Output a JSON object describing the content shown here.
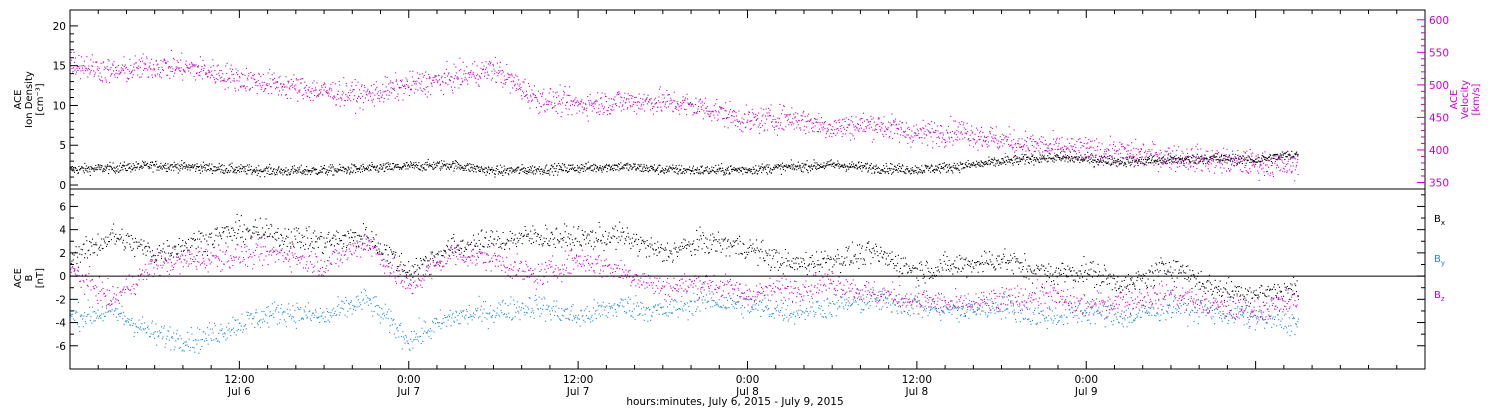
{
  "chart_data": [
    {
      "type": "scatter",
      "panel": "top",
      "ylabel_left": [
        "ACE",
        "Ion Density",
        "[cm⁻³]"
      ],
      "ylabel_right": [
        "ACE",
        "Velocity",
        "[km/s]"
      ],
      "ylim_left": [
        -0.5,
        22.0
      ],
      "ylim_right": [
        340,
        615
      ],
      "yticks_left": [
        "0",
        "5",
        "10",
        "15",
        "20"
      ],
      "yticks_right": [
        "350",
        "400",
        "450",
        "500",
        "550",
        "600"
      ],
      "series": [
        {
          "axis": "left",
          "color": "#000000",
          "x": [
            0,
            3,
            6,
            9,
            12,
            15,
            18,
            21,
            24,
            27,
            30,
            33,
            36,
            39,
            42,
            45,
            48,
            51,
            54,
            57,
            60,
            63,
            66,
            69,
            72,
            75,
            78,
            81,
            84,
            87
          ],
          "values": [
            2.0,
            2.2,
            2.5,
            2.3,
            2.0,
            1.8,
            1.9,
            2.1,
            2.4,
            2.6,
            1.8,
            2.0,
            2.2,
            2.4,
            2.0,
            1.9,
            2.0,
            2.3,
            2.6,
            2.2,
            2.0,
            2.4,
            3.0,
            3.5,
            3.3,
            3.0,
            3.2,
            3.4,
            3.2,
            4.0
          ]
        },
        {
          "axis": "right",
          "color": "#cc00cc",
          "x": [
            0,
            3,
            6,
            9,
            12,
            15,
            18,
            21,
            24,
            27,
            30,
            33,
            36,
            39,
            42,
            45,
            48,
            51,
            54,
            57,
            60,
            63,
            66,
            69,
            72,
            75,
            78,
            81,
            84,
            87
          ],
          "values": [
            535,
            520,
            530,
            525,
            510,
            500,
            490,
            485,
            500,
            510,
            525,
            480,
            470,
            475,
            475,
            465,
            445,
            450,
            435,
            440,
            425,
            430,
            415,
            405,
            400,
            395,
            390,
            385,
            380,
            375
          ]
        }
      ]
    },
    {
      "type": "scatter",
      "panel": "bottom",
      "ylabel": [
        "ACE",
        "B",
        "[nT]"
      ],
      "ylim": [
        -8.0,
        7.5
      ],
      "yticks": [
        "-6",
        "-4",
        "-2",
        "0",
        "2",
        "4",
        "6"
      ],
      "zero_line": true,
      "series": [
        {
          "name": "Bx",
          "color": "#000000",
          "x": [
            0,
            3,
            6,
            9,
            12,
            15,
            18,
            21,
            24,
            27,
            30,
            33,
            36,
            39,
            42,
            45,
            48,
            51,
            54,
            57,
            60,
            63,
            66,
            69,
            72,
            75,
            78,
            81,
            84,
            87
          ],
          "values": [
            1.5,
            3.5,
            2.0,
            3.0,
            4.0,
            3.5,
            3.0,
            3.5,
            0.5,
            2.5,
            3.0,
            3.5,
            3.2,
            3.5,
            2.0,
            3.0,
            2.5,
            1.0,
            1.5,
            2.0,
            0.5,
            1.0,
            1.5,
            0.2,
            0.5,
            -0.8,
            1.0,
            -1.0,
            -1.5,
            -1.0
          ]
        },
        {
          "name": "By",
          "color": "#1f8ad6",
          "x": [
            0,
            3,
            6,
            9,
            12,
            15,
            18,
            21,
            24,
            27,
            30,
            33,
            36,
            39,
            42,
            45,
            48,
            51,
            54,
            57,
            60,
            63,
            66,
            69,
            72,
            75,
            78,
            81,
            84,
            87
          ],
          "values": [
            -3.5,
            -3.0,
            -5.0,
            -5.5,
            -4.0,
            -3.0,
            -3.5,
            -2.0,
            -5.5,
            -3.5,
            -3.0,
            -2.5,
            -3.5,
            -2.5,
            -3.0,
            -2.0,
            -2.5,
            -3.0,
            -2.5,
            -2.0,
            -2.5,
            -3.0,
            -2.5,
            -3.5,
            -3.0,
            -3.5,
            -2.5,
            -3.0,
            -3.5,
            -4.0
          ]
        },
        {
          "name": "Bz",
          "color": "#cc00cc",
          "x": [
            0,
            3,
            6,
            9,
            12,
            15,
            18,
            21,
            24,
            27,
            30,
            33,
            36,
            39,
            42,
            45,
            48,
            51,
            54,
            57,
            60,
            63,
            66,
            69,
            72,
            75,
            78,
            81,
            84,
            87
          ],
          "values": [
            0.5,
            -2.0,
            1.0,
            1.5,
            1.8,
            2.0,
            1.0,
            3.0,
            -1.0,
            2.0,
            1.5,
            0.0,
            1.5,
            0.5,
            -1.0,
            -0.5,
            -1.5,
            -1.0,
            -0.5,
            -1.5,
            -2.0,
            -2.5,
            -2.0,
            -1.5,
            -2.5,
            -2.0,
            -1.5,
            -2.5,
            -3.0,
            -2.0
          ]
        }
      ],
      "legend": [
        {
          "text": "B",
          "sub": "x",
          "color": "#000000"
        },
        {
          "text": "B",
          "sub": "y",
          "color": "#1f8ad6"
        },
        {
          "text": "B",
          "sub": "z",
          "color": "#cc00cc"
        }
      ]
    }
  ],
  "xaxis": {
    "range_hours": [
      0,
      96
    ],
    "ticks": [
      {
        "hour": 12,
        "time": "12:00",
        "date": "Jul 6"
      },
      {
        "hour": 24,
        "time": "0:00",
        "date": "Jul 7"
      },
      {
        "hour": 36,
        "time": "12:00",
        "date": "Jul 7"
      },
      {
        "hour": 48,
        "time": "0:00",
        "date": "Jul 8"
      },
      {
        "hour": 60,
        "time": "12:00",
        "date": "Jul 8"
      },
      {
        "hour": 72,
        "time": "0:00",
        "date": "Jul 9"
      }
    ],
    "title": "hours:minutes,  July  6, 2015 - July  9, 2015"
  }
}
